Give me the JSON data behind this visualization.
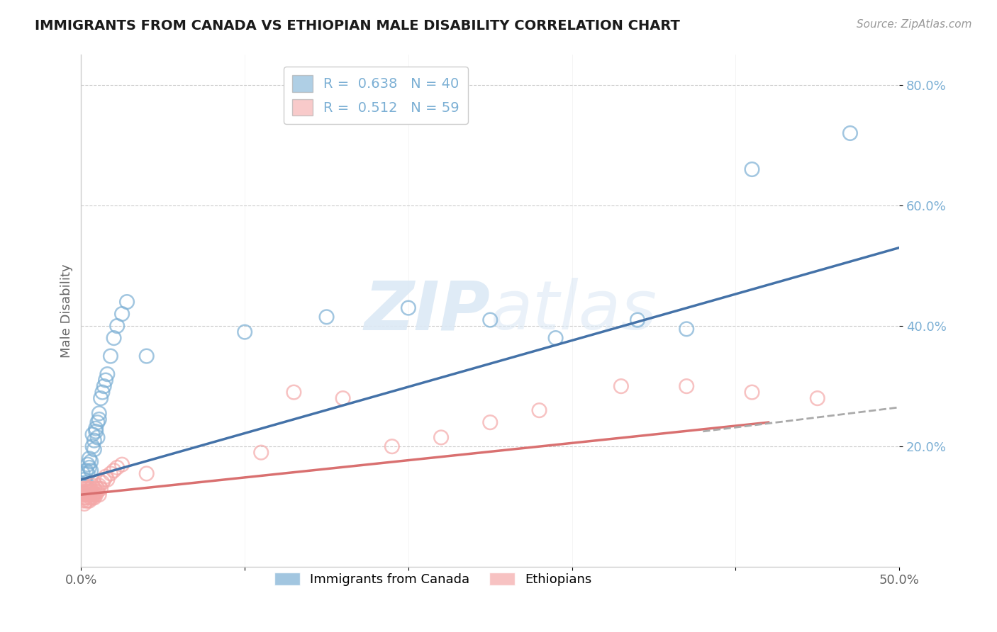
{
  "title": "IMMIGRANTS FROM CANADA VS ETHIOPIAN MALE DISABILITY CORRELATION CHART",
  "source": "Source: ZipAtlas.com",
  "ylabel": "Male Disability",
  "xlim": [
    0.0,
    0.5
  ],
  "ylim": [
    0.0,
    0.85
  ],
  "ytick_positions": [
    0.2,
    0.4,
    0.6,
    0.8
  ],
  "ytick_labels": [
    "20.0%",
    "40.0%",
    "60.0%",
    "80.0%"
  ],
  "blue_R": 0.638,
  "blue_N": 40,
  "pink_R": 0.512,
  "pink_N": 59,
  "blue_color": "#7bafd4",
  "pink_color": "#f4a8a8",
  "blue_line_color": "#4472a8",
  "pink_line_color": "#d97070",
  "watermark_color": "#dce9f5",
  "blue_scatter_x": [
    0.001,
    0.002,
    0.003,
    0.003,
    0.004,
    0.004,
    0.005,
    0.005,
    0.006,
    0.006,
    0.007,
    0.007,
    0.008,
    0.008,
    0.009,
    0.009,
    0.01,
    0.01,
    0.011,
    0.011,
    0.012,
    0.013,
    0.014,
    0.015,
    0.016,
    0.018,
    0.02,
    0.022,
    0.025,
    0.028,
    0.1,
    0.15,
    0.2,
    0.25,
    0.29,
    0.34,
    0.37,
    0.41,
    0.47,
    0.04
  ],
  "blue_scatter_y": [
    0.155,
    0.145,
    0.16,
    0.14,
    0.17,
    0.155,
    0.165,
    0.18,
    0.175,
    0.16,
    0.2,
    0.22,
    0.195,
    0.21,
    0.225,
    0.23,
    0.24,
    0.215,
    0.245,
    0.255,
    0.28,
    0.29,
    0.3,
    0.31,
    0.32,
    0.35,
    0.38,
    0.4,
    0.42,
    0.44,
    0.39,
    0.415,
    0.43,
    0.41,
    0.38,
    0.41,
    0.395,
    0.66,
    0.72,
    0.35
  ],
  "pink_scatter_x": [
    0.001,
    0.001,
    0.001,
    0.002,
    0.002,
    0.002,
    0.002,
    0.003,
    0.003,
    0.003,
    0.003,
    0.003,
    0.004,
    0.004,
    0.004,
    0.004,
    0.005,
    0.005,
    0.005,
    0.005,
    0.005,
    0.006,
    0.006,
    0.006,
    0.006,
    0.007,
    0.007,
    0.007,
    0.007,
    0.008,
    0.008,
    0.008,
    0.009,
    0.009,
    0.01,
    0.01,
    0.011,
    0.011,
    0.012,
    0.013,
    0.014,
    0.015,
    0.016,
    0.018,
    0.02,
    0.022,
    0.025,
    0.11,
    0.13,
    0.16,
    0.19,
    0.22,
    0.25,
    0.28,
    0.33,
    0.37,
    0.41,
    0.45,
    0.04
  ],
  "pink_scatter_y": [
    0.125,
    0.11,
    0.13,
    0.115,
    0.12,
    0.105,
    0.135,
    0.11,
    0.12,
    0.13,
    0.115,
    0.125,
    0.12,
    0.11,
    0.13,
    0.125,
    0.115,
    0.12,
    0.13,
    0.125,
    0.11,
    0.125,
    0.115,
    0.12,
    0.13,
    0.125,
    0.115,
    0.12,
    0.135,
    0.12,
    0.13,
    0.115,
    0.125,
    0.12,
    0.13,
    0.125,
    0.135,
    0.12,
    0.13,
    0.14,
    0.145,
    0.15,
    0.145,
    0.155,
    0.16,
    0.165,
    0.17,
    0.19,
    0.29,
    0.28,
    0.2,
    0.215,
    0.24,
    0.26,
    0.3,
    0.3,
    0.29,
    0.28,
    0.155
  ]
}
